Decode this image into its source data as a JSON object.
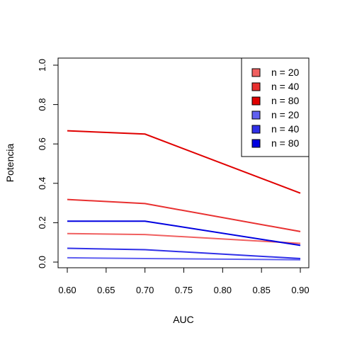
{
  "chart_data": {
    "type": "line",
    "xlabel": "AUC",
    "ylabel": "Potencia",
    "xlim": [
      0.6,
      0.9
    ],
    "ylim": [
      0.0,
      1.0
    ],
    "xticks": [
      "0.60",
      "0.65",
      "0.70",
      "0.75",
      "0.80",
      "0.85",
      "0.90"
    ],
    "yticks": [
      "0.0",
      "0.2",
      "0.4",
      "0.6",
      "0.8",
      "1.0"
    ],
    "grid": false,
    "legend_position": "top-right",
    "x": [
      0.6,
      0.7,
      0.9
    ],
    "series": [
      {
        "name": "n = 20",
        "color": "#F06060",
        "values": [
          0.145,
          0.14,
          0.095
        ]
      },
      {
        "name": "n = 40",
        "color": "#E83030",
        "values": [
          0.318,
          0.297,
          0.155
        ]
      },
      {
        "name": "n = 80",
        "color": "#E00000",
        "values": [
          0.667,
          0.65,
          0.35
        ]
      },
      {
        "name": "n = 20",
        "color": "#6060F0",
        "values": [
          0.022,
          0.018,
          0.012
        ]
      },
      {
        "name": "n = 40",
        "color": "#3030E8",
        "values": [
          0.07,
          0.063,
          0.018
        ]
      },
      {
        "name": "n = 80",
        "color": "#0000E0",
        "values": [
          0.208,
          0.208,
          0.085
        ]
      }
    ]
  }
}
